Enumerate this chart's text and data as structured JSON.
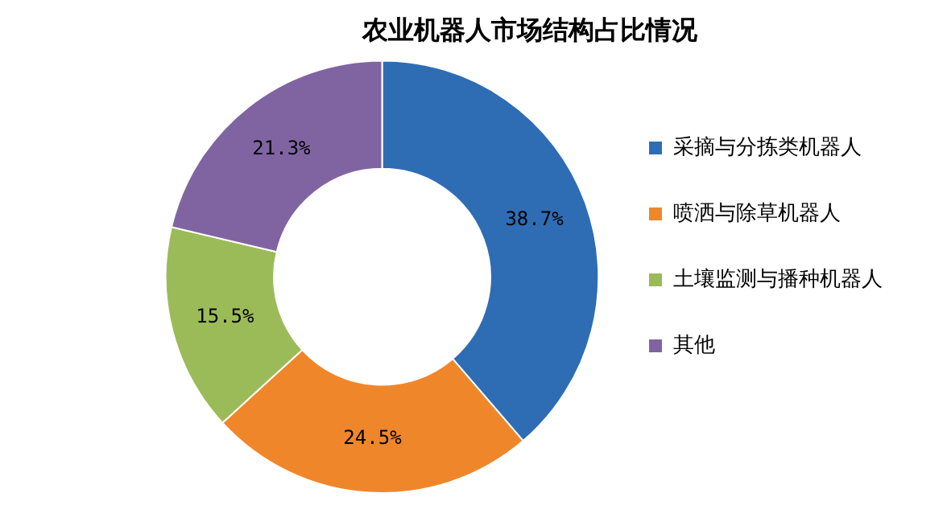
{
  "chart_data": {
    "type": "donut",
    "title": "农业机器人市场结构占比情况",
    "categories": [
      "采摘与分拣类机器人",
      "喷洒与除草机器人",
      "土壤监测与播种机器人",
      "其他"
    ],
    "values": [
      38.7,
      24.5,
      15.5,
      21.3
    ],
    "value_labels": [
      "38.7%",
      "24.5%",
      "15.5%",
      "21.3%"
    ],
    "colors": [
      "#2e6db4",
      "#f0862a",
      "#9bbb59",
      "#8064a2"
    ],
    "legend": "right"
  }
}
